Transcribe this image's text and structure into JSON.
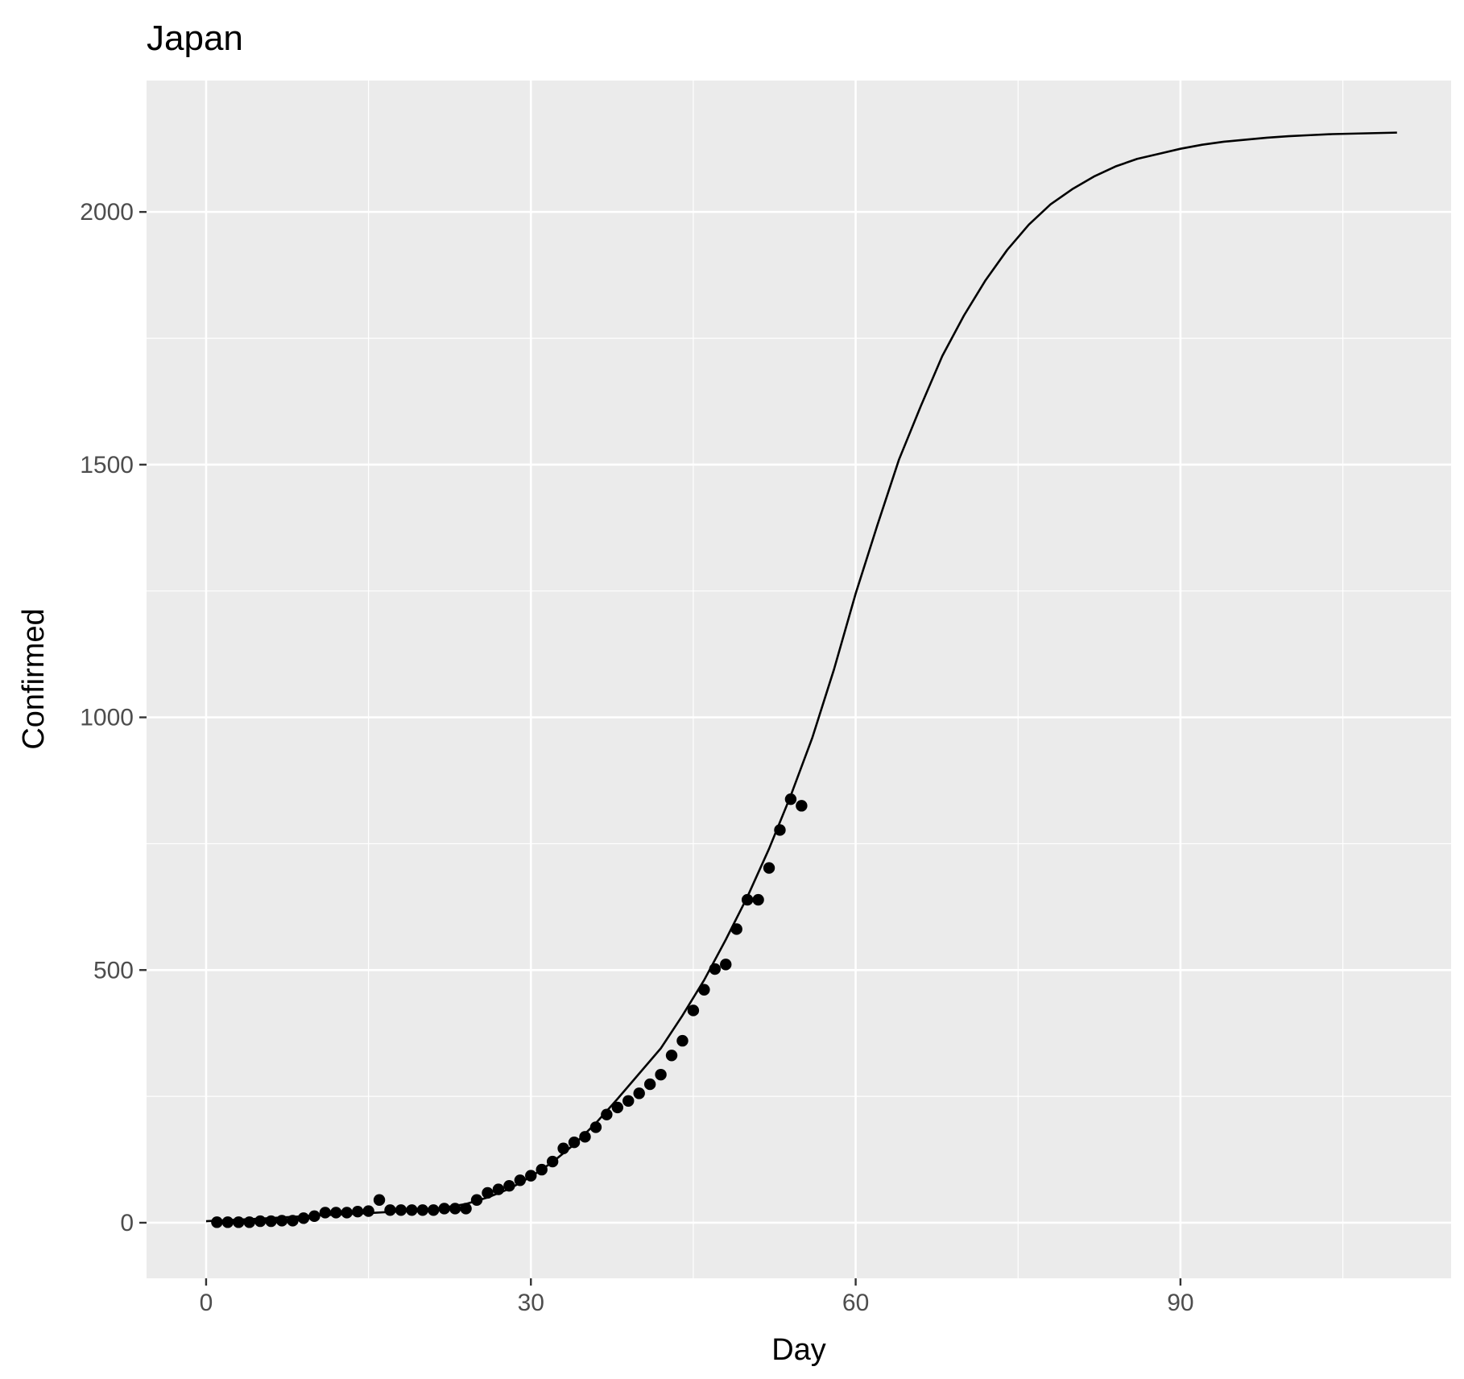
{
  "chart_data": {
    "type": "scatter",
    "title": "Japan",
    "xlabel": "Day",
    "ylabel": "Confirmed",
    "xlim": [
      -5.5,
      115
    ],
    "ylim": [
      -110,
      2260
    ],
    "x_ticks": [
      0,
      30,
      60,
      90
    ],
    "y_ticks": [
      0,
      500,
      1000,
      1500,
      2000
    ],
    "x_minor_ticks": [
      15,
      45,
      75,
      105
    ],
    "y_minor_ticks": [
      250,
      750,
      1250,
      1750
    ],
    "colors": {
      "panel": "#ebebeb",
      "grid": "#ffffff",
      "points": "#000000",
      "curve": "#000000",
      "tick_label": "#4d4d4d"
    },
    "legend": "none",
    "grid": true,
    "series": [
      {
        "type": "points",
        "x": [
          1,
          2,
          3,
          4,
          5,
          6,
          7,
          8,
          9,
          10,
          11,
          12,
          13,
          14,
          15,
          16,
          17,
          18,
          19,
          20,
          21,
          22,
          23,
          24,
          25,
          26,
          27,
          28,
          29,
          30,
          31,
          32,
          33,
          34,
          35,
          36,
          37,
          38,
          39,
          40,
          41,
          42,
          43,
          44,
          45,
          46,
          47,
          48,
          49,
          50,
          51,
          52,
          53,
          54,
          55
        ],
        "values": [
          1,
          1,
          1,
          1,
          3,
          3,
          4,
          4,
          9,
          13,
          20,
          20,
          20,
          22,
          23,
          45,
          25,
          25,
          25,
          25,
          25,
          28,
          28,
          28,
          45,
          59,
          66,
          73,
          84,
          93,
          105,
          121,
          147,
          159,
          170,
          189,
          214,
          228,
          241,
          256,
          274,
          293,
          331,
          360,
          420,
          461,
          502,
          511,
          581,
          639,
          639,
          702,
          777,
          838,
          825
        ]
      },
      {
        "type": "line",
        "x": [
          0,
          5,
          10,
          15,
          20,
          22,
          24,
          26,
          28,
          30,
          32,
          34,
          36,
          38,
          40,
          42,
          44,
          46,
          48,
          50,
          52,
          54,
          56,
          58,
          60,
          62,
          64,
          66,
          68,
          70,
          72,
          74,
          76,
          78,
          80,
          82,
          84,
          86,
          88,
          90,
          92,
          94,
          96,
          98,
          100,
          102,
          104,
          106,
          108,
          110
        ],
        "values": [
          3,
          8,
          14,
          19,
          25,
          30,
          37,
          50,
          67,
          91,
          120,
          155,
          197,
          245,
          295,
          345,
          410,
          480,
          560,
          645,
          740,
          845,
          960,
          1095,
          1245,
          1380,
          1510,
          1615,
          1715,
          1795,
          1865,
          1925,
          1975,
          2015,
          2045,
          2070,
          2090,
          2105,
          2115,
          2125,
          2133,
          2139,
          2143,
          2147,
          2150,
          2152,
          2154,
          2155,
          2156,
          2157
        ]
      }
    ]
  }
}
